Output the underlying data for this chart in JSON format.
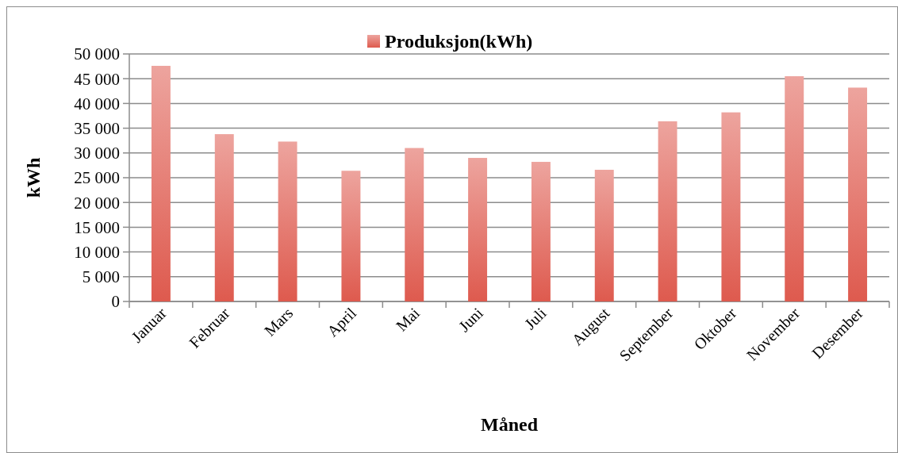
{
  "chart_data": {
    "type": "bar",
    "xlabel": "Måned",
    "ylabel": "kWh",
    "categories": [
      "Januar",
      "Februar",
      "Mars",
      "April",
      "Mai",
      "Juni",
      "Juli",
      "August",
      "September",
      "Oktober",
      "November",
      "Desember"
    ],
    "series": [
      {
        "name": "Produksjon(kWh)",
        "color": "#de5a4e",
        "values": [
          47600,
          33800,
          32300,
          26400,
          31000,
          29000,
          28200,
          26600,
          36400,
          38200,
          45500,
          43200
        ]
      }
    ],
    "ylim": [
      0,
      50000
    ],
    "yticks": [
      {
        "value": 0,
        "label": "0"
      },
      {
        "value": 5000,
        "label": "5 000"
      },
      {
        "value": 10000,
        "label": "10 000"
      },
      {
        "value": 15000,
        "label": "15 000"
      },
      {
        "value": 20000,
        "label": "20 000"
      },
      {
        "value": 25000,
        "label": "25 000"
      },
      {
        "value": 30000,
        "label": "30 000"
      },
      {
        "value": 35000,
        "label": "35 000"
      },
      {
        "value": 40000,
        "label": "40 000"
      },
      {
        "value": 45000,
        "label": "45 000"
      },
      {
        "value": 50000,
        "label": "50 000"
      }
    ],
    "grid": "y",
    "legend": "top"
  }
}
